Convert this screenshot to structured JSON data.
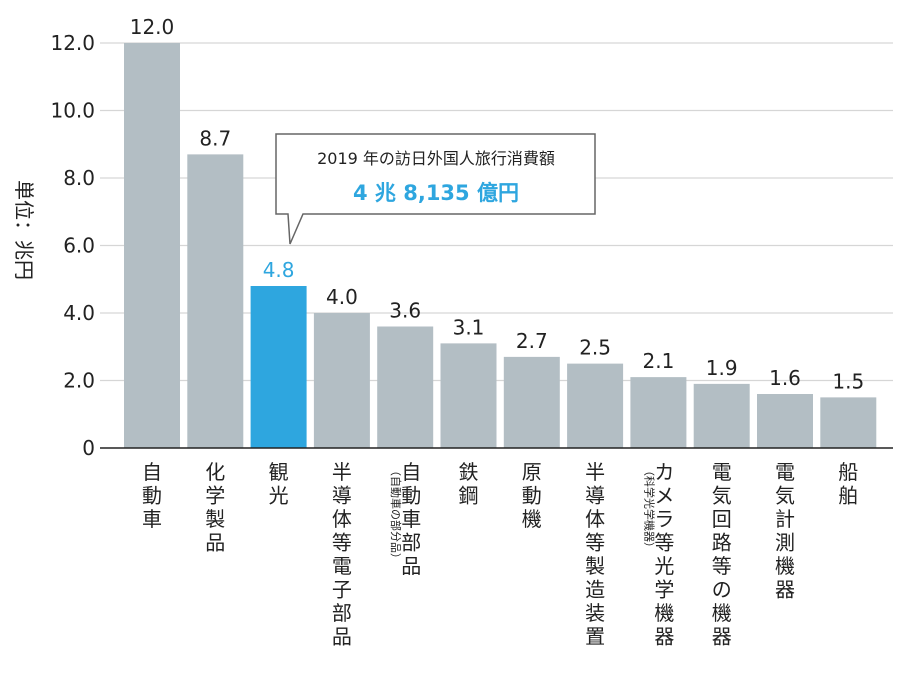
{
  "chart_data": {
    "type": "bar",
    "ylabel": "単位：兆円",
    "ylim": [
      0,
      12
    ],
    "yticks": [
      "0",
      "2.0",
      "4.0",
      "6.0",
      "8.0",
      "10.0",
      "12.0"
    ],
    "grid": true,
    "highlight_index": 2,
    "categories": [
      {
        "name": "自動車",
        "note": ""
      },
      {
        "name": "化学製品",
        "note": ""
      },
      {
        "name": "観光",
        "note": ""
      },
      {
        "name": "半導体等電子部品",
        "note": ""
      },
      {
        "name": "自動車部品",
        "note": "（自動車の部分品）"
      },
      {
        "name": "鉄鋼",
        "note": ""
      },
      {
        "name": "原動機",
        "note": ""
      },
      {
        "name": "半導体等製造装置",
        "note": ""
      },
      {
        "name": "カメラ等光学機器",
        "note": "（科学光学機器）"
      },
      {
        "name": "電気回路等の機器",
        "note": ""
      },
      {
        "name": "電気計測機器",
        "note": ""
      },
      {
        "name": "船舶",
        "note": ""
      }
    ],
    "values": [
      12.0,
      8.7,
      4.8,
      4.0,
      3.6,
      3.1,
      2.7,
      2.5,
      2.1,
      1.9,
      1.6,
      1.5
    ],
    "value_labels": [
      "12.0",
      "8.7",
      "4.8",
      "4.0",
      "3.6",
      "3.1",
      "2.7",
      "2.5",
      "2.1",
      "1.9",
      "1.6",
      "1.5"
    ],
    "annotation": {
      "line1": "2019 年の訪日外国人旅行消費額",
      "line2": "4 兆 8,135 億円"
    },
    "colors": {
      "bar": "#b3bec4",
      "highlight": "#2ea6df",
      "grid": "#d6d6d6",
      "axis": "#222222"
    }
  }
}
